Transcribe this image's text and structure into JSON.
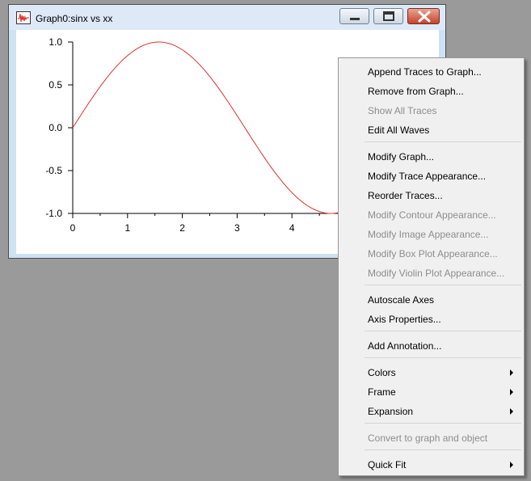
{
  "window": {
    "title": "Graph0:sinx vs xx",
    "icon": "graph-app-icon"
  },
  "colors": {
    "trace": "#e0302f",
    "menu_bg": "#f0f0f0",
    "disabled_text": "#8d8d8d"
  },
  "chart_data": {
    "type": "line",
    "title": "",
    "xlabel": "",
    "ylabel": "",
    "xlim": [
      0,
      6
    ],
    "ylim": [
      -1.0,
      1.0
    ],
    "x_ticks": [
      "0",
      "1",
      "2",
      "3",
      "4"
    ],
    "y_ticks": [
      "1.0",
      "0.5",
      "0.0",
      "-0.5",
      "-1.0"
    ],
    "series": [
      {
        "name": "sinx",
        "function": "sin(x)",
        "x_start": 0,
        "x_end": 6,
        "color": "#e0302f"
      }
    ]
  },
  "context_menu": {
    "items": [
      {
        "label": "Append Traces to Graph...",
        "enabled": true
      },
      {
        "label": "Remove from Graph...",
        "enabled": true
      },
      {
        "label": "Show All Traces",
        "enabled": false
      },
      {
        "label": "Edit All Waves",
        "enabled": true
      },
      {
        "label": "Modify Graph...",
        "enabled": true
      },
      {
        "label": "Modify Trace Appearance...",
        "enabled": true
      },
      {
        "label": "Reorder Traces...",
        "enabled": true
      },
      {
        "label": "Modify Contour Appearance...",
        "enabled": false
      },
      {
        "label": "Modify Image Appearance...",
        "enabled": false
      },
      {
        "label": "Modify Box Plot Appearance...",
        "enabled": false
      },
      {
        "label": "Modify Violin Plot Appearance...",
        "enabled": false
      },
      {
        "label": "Autoscale Axes",
        "enabled": true
      },
      {
        "label": "Axis Properties...",
        "enabled": true
      },
      {
        "label": "Add Annotation...",
        "enabled": true
      },
      {
        "label": "Colors",
        "enabled": true,
        "submenu": true
      },
      {
        "label": "Frame",
        "enabled": true,
        "submenu": true
      },
      {
        "label": "Expansion",
        "enabled": true,
        "submenu": true
      },
      {
        "label": "Convert to graph and object",
        "enabled": false
      },
      {
        "label": "Quick Fit",
        "enabled": true,
        "submenu": true
      }
    ]
  }
}
